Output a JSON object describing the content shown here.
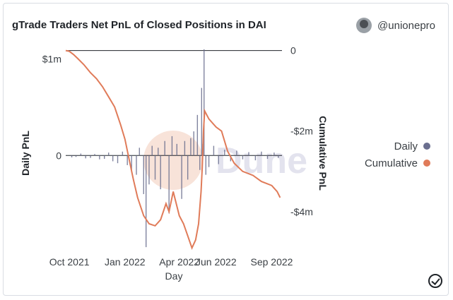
{
  "header": {
    "title": "gTrade Traders Net PnL of Closed Positions in DAI",
    "username": "@unionepro",
    "avatar_icon": "user-avatar-icon"
  },
  "watermark": {
    "text": "Dune"
  },
  "legend": {
    "daily_label": "Daily",
    "cumulative_label": "Cumulative",
    "daily_color": "#6b6f8f",
    "cumulative_color": "#e07b59"
  },
  "chart_data": {
    "type": "line",
    "xlabel": "Day",
    "ylabel_left": "Daily PnL",
    "ylabel_right": "Cumulative PnL",
    "x_range": [
      "2021-09-25",
      "2022-09-18"
    ],
    "x_ticks": [
      {
        "date": "2021-10-01",
        "label": "Oct 2021"
      },
      {
        "date": "2022-01-01",
        "label": "Jan 2022"
      },
      {
        "date": "2022-04-01",
        "label": "Apr 2022"
      },
      {
        "date": "2022-06-01",
        "label": "Jun 2022"
      },
      {
        "date": "2022-09-01",
        "label": "Sep 2022"
      }
    ],
    "y_left": {
      "range": [
        -1000000,
        1150000
      ],
      "ticks": [
        {
          "value": 1000000,
          "label": "$1m"
        },
        {
          "value": 0,
          "label": "0"
        }
      ]
    },
    "y_right": {
      "range": [
        -5000000,
        150000
      ],
      "ticks": [
        {
          "value": 0,
          "label": "0"
        },
        {
          "value": -2000000,
          "label": "-$2m"
        },
        {
          "value": -4000000,
          "label": "-$4m"
        }
      ]
    },
    "series": [
      {
        "name": "Cumulative",
        "axis": "right",
        "points": [
          [
            "2021-09-25",
            0
          ],
          [
            "2021-10-01",
            -20000
          ],
          [
            "2021-10-08",
            -100000
          ],
          [
            "2021-10-15",
            -200000
          ],
          [
            "2021-10-25",
            -350000
          ],
          [
            "2021-11-05",
            -550000
          ],
          [
            "2021-11-15",
            -700000
          ],
          [
            "2021-11-25",
            -900000
          ],
          [
            "2021-12-05",
            -1150000
          ],
          [
            "2021-12-15",
            -1400000
          ],
          [
            "2021-12-25",
            -1850000
          ],
          [
            "2022-01-01",
            -2200000
          ],
          [
            "2022-01-08",
            -2700000
          ],
          [
            "2022-01-15",
            -3200000
          ],
          [
            "2022-01-22",
            -3650000
          ],
          [
            "2022-02-01",
            -4100000
          ],
          [
            "2022-02-10",
            -4300000
          ],
          [
            "2022-02-20",
            -4350000
          ],
          [
            "2022-03-01",
            -4200000
          ],
          [
            "2022-03-10",
            -3800000
          ],
          [
            "2022-03-15",
            -4000000
          ],
          [
            "2022-03-22",
            -3500000
          ],
          [
            "2022-04-01",
            -4100000
          ],
          [
            "2022-04-08",
            -4300000
          ],
          [
            "2022-04-15",
            -4600000
          ],
          [
            "2022-04-22",
            -4900000
          ],
          [
            "2022-04-28",
            -4700000
          ],
          [
            "2022-05-03",
            -4300000
          ],
          [
            "2022-05-07",
            -3500000
          ],
          [
            "2022-05-09",
            -2900000
          ],
          [
            "2022-05-11",
            -2000000
          ],
          [
            "2022-05-13",
            -1500000
          ],
          [
            "2022-05-20",
            -1700000
          ],
          [
            "2022-06-01",
            -1900000
          ],
          [
            "2022-06-10",
            -2000000
          ],
          [
            "2022-06-20",
            -2500000
          ],
          [
            "2022-07-01",
            -2800000
          ],
          [
            "2022-07-15",
            -3000000
          ],
          [
            "2022-08-01",
            -3100000
          ],
          [
            "2022-08-15",
            -3250000
          ],
          [
            "2022-09-01",
            -3350000
          ],
          [
            "2022-09-10",
            -3500000
          ],
          [
            "2022-09-15",
            -3650000
          ]
        ]
      },
      {
        "name": "Daily",
        "axis": "left",
        "points": [
          [
            "2021-10-05",
            -20000
          ],
          [
            "2021-10-12",
            -15000
          ],
          [
            "2021-10-20",
            20000
          ],
          [
            "2021-10-28",
            -30000
          ],
          [
            "2021-11-05",
            -25000
          ],
          [
            "2021-11-12",
            15000
          ],
          [
            "2021-11-20",
            -40000
          ],
          [
            "2021-11-28",
            -35000
          ],
          [
            "2021-12-05",
            30000
          ],
          [
            "2021-12-12",
            -60000
          ],
          [
            "2021-12-20",
            -80000
          ],
          [
            "2021-12-28",
            40000
          ],
          [
            "2022-01-05",
            -100000
          ],
          [
            "2022-01-12",
            -150000
          ],
          [
            "2022-01-20",
            -200000
          ],
          [
            "2022-01-25",
            80000
          ],
          [
            "2022-02-01",
            -400000
          ],
          [
            "2022-02-05",
            -950000
          ],
          [
            "2022-02-10",
            -300000
          ],
          [
            "2022-02-15",
            100000
          ],
          [
            "2022-02-20",
            -250000
          ],
          [
            "2022-02-25",
            80000
          ],
          [
            "2022-03-01",
            -350000
          ],
          [
            "2022-03-08",
            150000
          ],
          [
            "2022-03-15",
            -600000
          ],
          [
            "2022-03-20",
            200000
          ],
          [
            "2022-03-28",
            120000
          ],
          [
            "2022-04-05",
            -450000
          ],
          [
            "2022-04-10",
            150000
          ],
          [
            "2022-04-15",
            -250000
          ],
          [
            "2022-04-20",
            180000
          ],
          [
            "2022-04-25",
            250000
          ],
          [
            "2022-05-01",
            420000
          ],
          [
            "2022-05-05",
            -150000
          ],
          [
            "2022-05-08",
            700000
          ],
          [
            "2022-05-10",
            120000
          ],
          [
            "2022-05-12",
            1100000
          ],
          [
            "2022-05-15",
            -200000
          ],
          [
            "2022-05-20",
            -120000
          ],
          [
            "2022-05-28",
            100000
          ],
          [
            "2022-06-05",
            -90000
          ],
          [
            "2022-06-15",
            60000
          ],
          [
            "2022-06-25",
            -60000
          ],
          [
            "2022-07-05",
            50000
          ],
          [
            "2022-07-15",
            -40000
          ],
          [
            "2022-07-25",
            35000
          ],
          [
            "2022-08-05",
            -50000
          ],
          [
            "2022-08-15",
            40000
          ],
          [
            "2022-08-25",
            -35000
          ],
          [
            "2022-09-05",
            30000
          ],
          [
            "2022-09-12",
            -25000
          ]
        ]
      }
    ]
  }
}
